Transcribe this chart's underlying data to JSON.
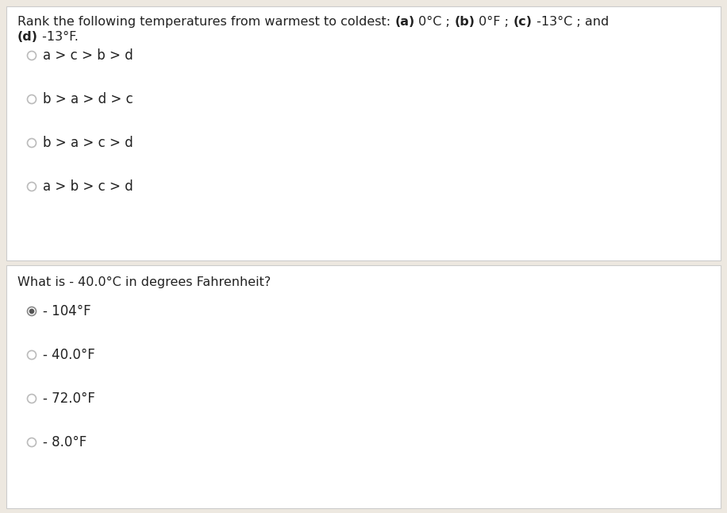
{
  "background_color": "#ede8e0",
  "top_section_bg": "#ffffff",
  "bottom_section_bg": "#ffffff",
  "border_color": "#cccccc",
  "question1": {
    "line1_parts": [
      {
        "text": "Rank the following temperatures from warmest to coldest: ",
        "bold": false
      },
      {
        "text": "(a)",
        "bold": true
      },
      {
        "text": " 0°C ; ",
        "bold": false
      },
      {
        "text": "(b)",
        "bold": true
      },
      {
        "text": " 0°F ; ",
        "bold": false
      },
      {
        "text": "(c)",
        "bold": true
      },
      {
        "text": " -13°C ; and",
        "bold": false
      }
    ],
    "line2_parts": [
      {
        "text": "(d)",
        "bold": true
      },
      {
        "text": " -13°F.",
        "bold": false
      }
    ],
    "options": [
      {
        "text": "a > c > b > d",
        "selected": false
      },
      {
        "text": "b > a > d > c",
        "selected": false
      },
      {
        "text": "b > a > c > d",
        "selected": false
      },
      {
        "text": "a > b > c > d",
        "selected": false
      }
    ]
  },
  "question2": {
    "text": "What is - 40.0°C in degrees Fahrenheit?",
    "options": [
      {
        "text": "- 104°F",
        "selected": true
      },
      {
        "text": "- 40.0°F",
        "selected": false
      },
      {
        "text": "- 72.0°F",
        "selected": false
      },
      {
        "text": "- 8.0°F",
        "selected": false
      }
    ]
  },
  "text_color": "#222222",
  "question_fontsize": 11.5,
  "option_fontsize": 12,
  "radio_empty_edge": "#bbbbbb",
  "radio_selected_edge": "#888888",
  "radio_selected_fill": "#555555"
}
